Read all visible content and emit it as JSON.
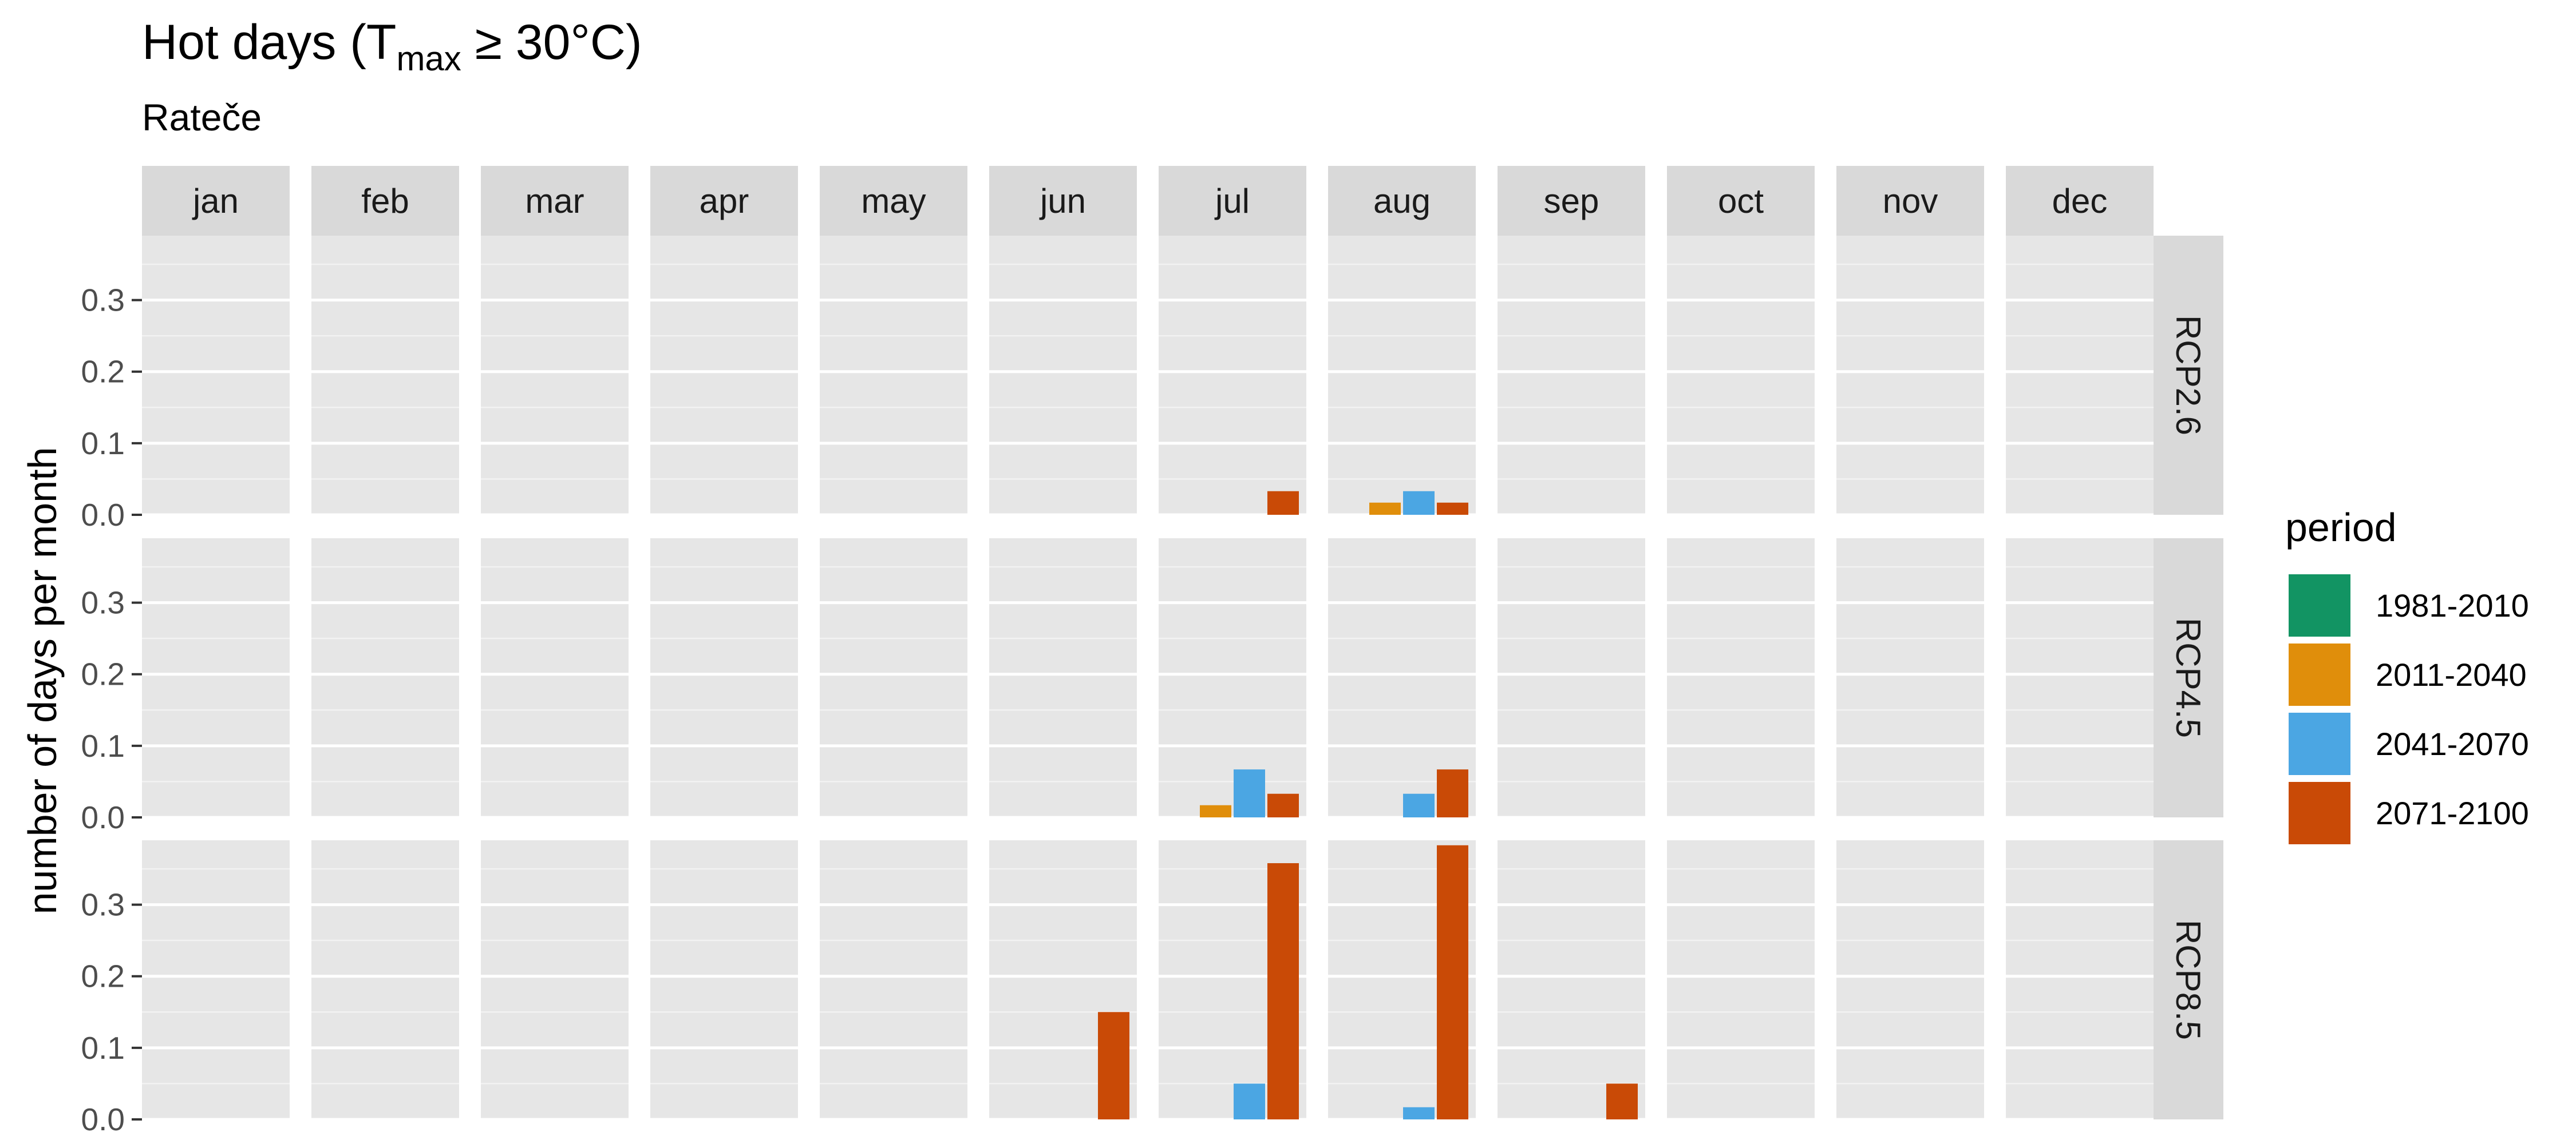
{
  "chart_data": {
    "type": "bar",
    "title": {
      "main": "Hot days (T",
      "sub": "max",
      "rest": " ≥ 30°C)"
    },
    "subtitle": "Rateče",
    "ylabel": "number of days per month",
    "xlabel": "",
    "ylim": [
      0,
      0.39
    ],
    "yticks": [
      0.0,
      0.1,
      0.2,
      0.3
    ],
    "ytick_labels": [
      "0.0",
      "0.1",
      "0.2",
      "0.3"
    ],
    "grid": true,
    "months": [
      "jan",
      "feb",
      "mar",
      "apr",
      "may",
      "jun",
      "jul",
      "aug",
      "sep",
      "oct",
      "nov",
      "dec"
    ],
    "scenarios": [
      "RCP2.6",
      "RCP4.5",
      "RCP8.5"
    ],
    "legend": {
      "title": "period",
      "placement": "right",
      "entries": [
        {
          "name": "1981-2010",
          "color": "#129463"
        },
        {
          "name": "2011-2040",
          "color": "#E08E0B"
        },
        {
          "name": "2041-2070",
          "color": "#4BA6E3"
        },
        {
          "name": "2071-2100",
          "color": "#C94A06"
        }
      ]
    },
    "values": {
      "RCP2.6": {
        "jul": {
          "2071-2100": 0.033
        },
        "aug": {
          "2011-2040": 0.017,
          "2041-2070": 0.033,
          "2071-2100": 0.017
        }
      },
      "RCP4.5": {
        "jul": {
          "2011-2040": 0.017,
          "2041-2070": 0.067,
          "2071-2100": 0.033
        },
        "aug": {
          "2041-2070": 0.033,
          "2071-2100": 0.067
        }
      },
      "RCP8.5": {
        "jun": {
          "2071-2100": 0.15
        },
        "jul": {
          "2041-2070": 0.05,
          "2071-2100": 0.358
        },
        "aug": {
          "2041-2070": 0.017,
          "2071-2100": 0.383
        },
        "sep": {
          "2071-2100": 0.05
        }
      }
    }
  }
}
